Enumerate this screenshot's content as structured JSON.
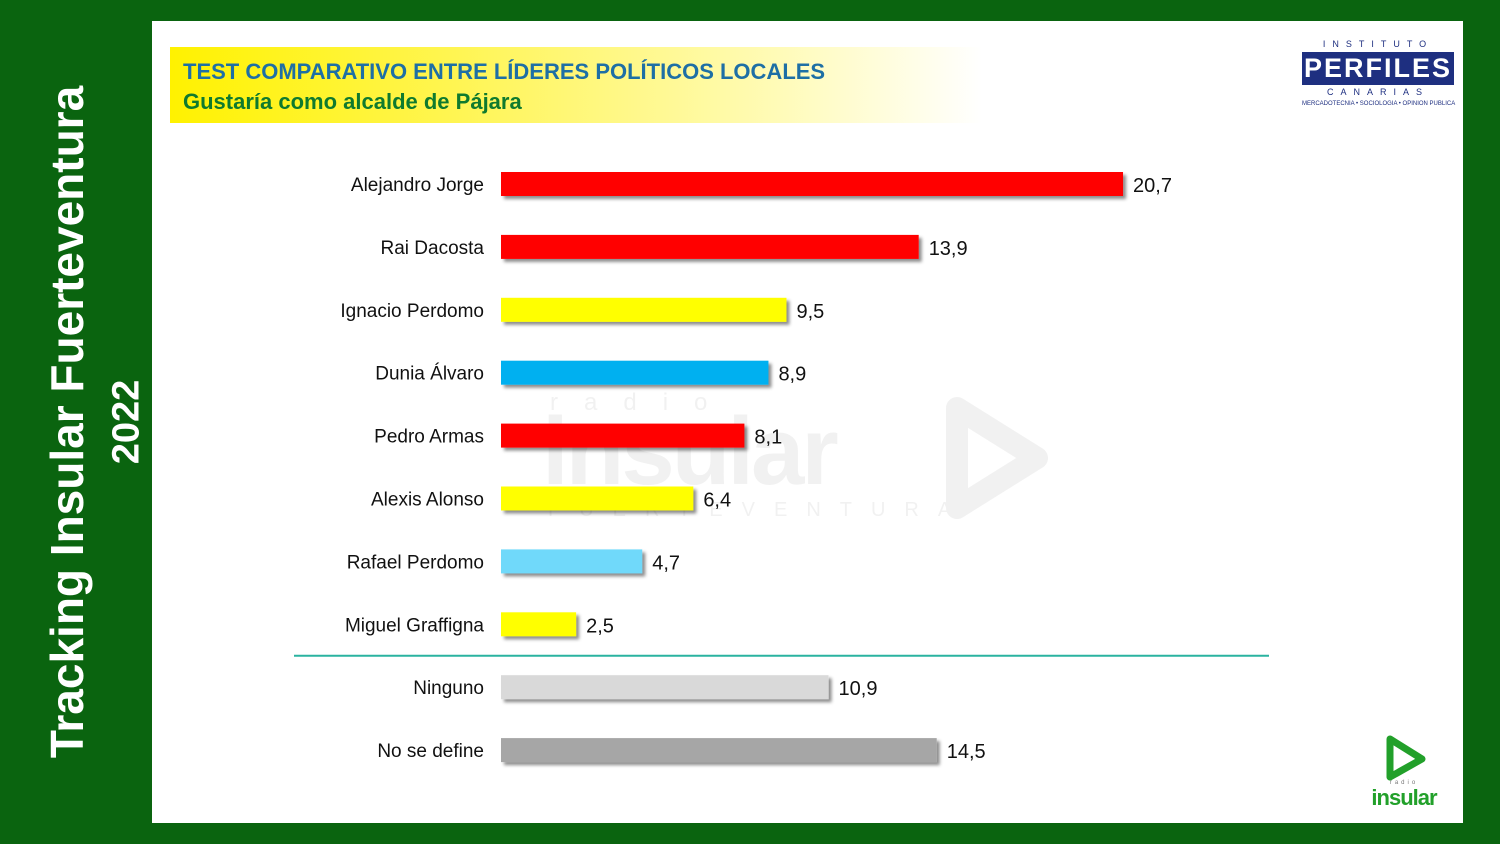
{
  "side_title": {
    "line1": "Tracking Insular Fuerteventura",
    "line2": "2022"
  },
  "header": {
    "title": "TEST COMPARATIVO ENTRE LÍDERES POLÍTICOS LOCALES",
    "subtitle": "Gustaría como alcalde de Pájara"
  },
  "logos": {
    "perfiles_top": "INSTITUTO",
    "perfiles_main": "PERFILES",
    "perfiles_mid": "CANARIAS",
    "perfiles_bottom": "MERCADOTECNIA • SOCIOLOGIA • OPINION PUBLICA",
    "insular_small": "radio",
    "insular_word": "insular",
    "watermark_small": "radio",
    "watermark_main": "insular",
    "watermark_sub": "FUERTEVENTURA"
  },
  "colors": {
    "frame_green": "#0a640f",
    "title_blue": "#1e6fa5",
    "subtitle_green": "#0f7a2e",
    "separator": "#2ab3a0"
  },
  "chart_data": {
    "type": "bar",
    "orientation": "horizontal",
    "categories": [
      "Alejandro Jorge",
      "Rai Dacosta",
      "Ignacio Perdomo",
      "Dunia Álvaro",
      "Pedro Armas",
      "Alexis Alonso",
      "Rafael Perdomo",
      "Miguel Graffigna",
      "Ninguno",
      "No se define"
    ],
    "values": [
      20.7,
      13.9,
      9.5,
      8.9,
      8.1,
      6.4,
      4.7,
      2.5,
      10.9,
      14.5
    ],
    "value_labels": [
      "20,7",
      "13,9",
      "9,5",
      "8,9",
      "8,1",
      "6,4",
      "4,7",
      "2,5",
      "10,9",
      "14,5"
    ],
    "bar_colors": [
      "#ff0000",
      "#ff0000",
      "#ffff00",
      "#00b0f0",
      "#ff0000",
      "#ffff00",
      "#6fd9fa",
      "#ffff00",
      "#d9d9d9",
      "#a6a6a6"
    ],
    "separator_after_index": 7,
    "xlim": [
      0,
      21
    ],
    "grid": false,
    "legend": "none"
  }
}
